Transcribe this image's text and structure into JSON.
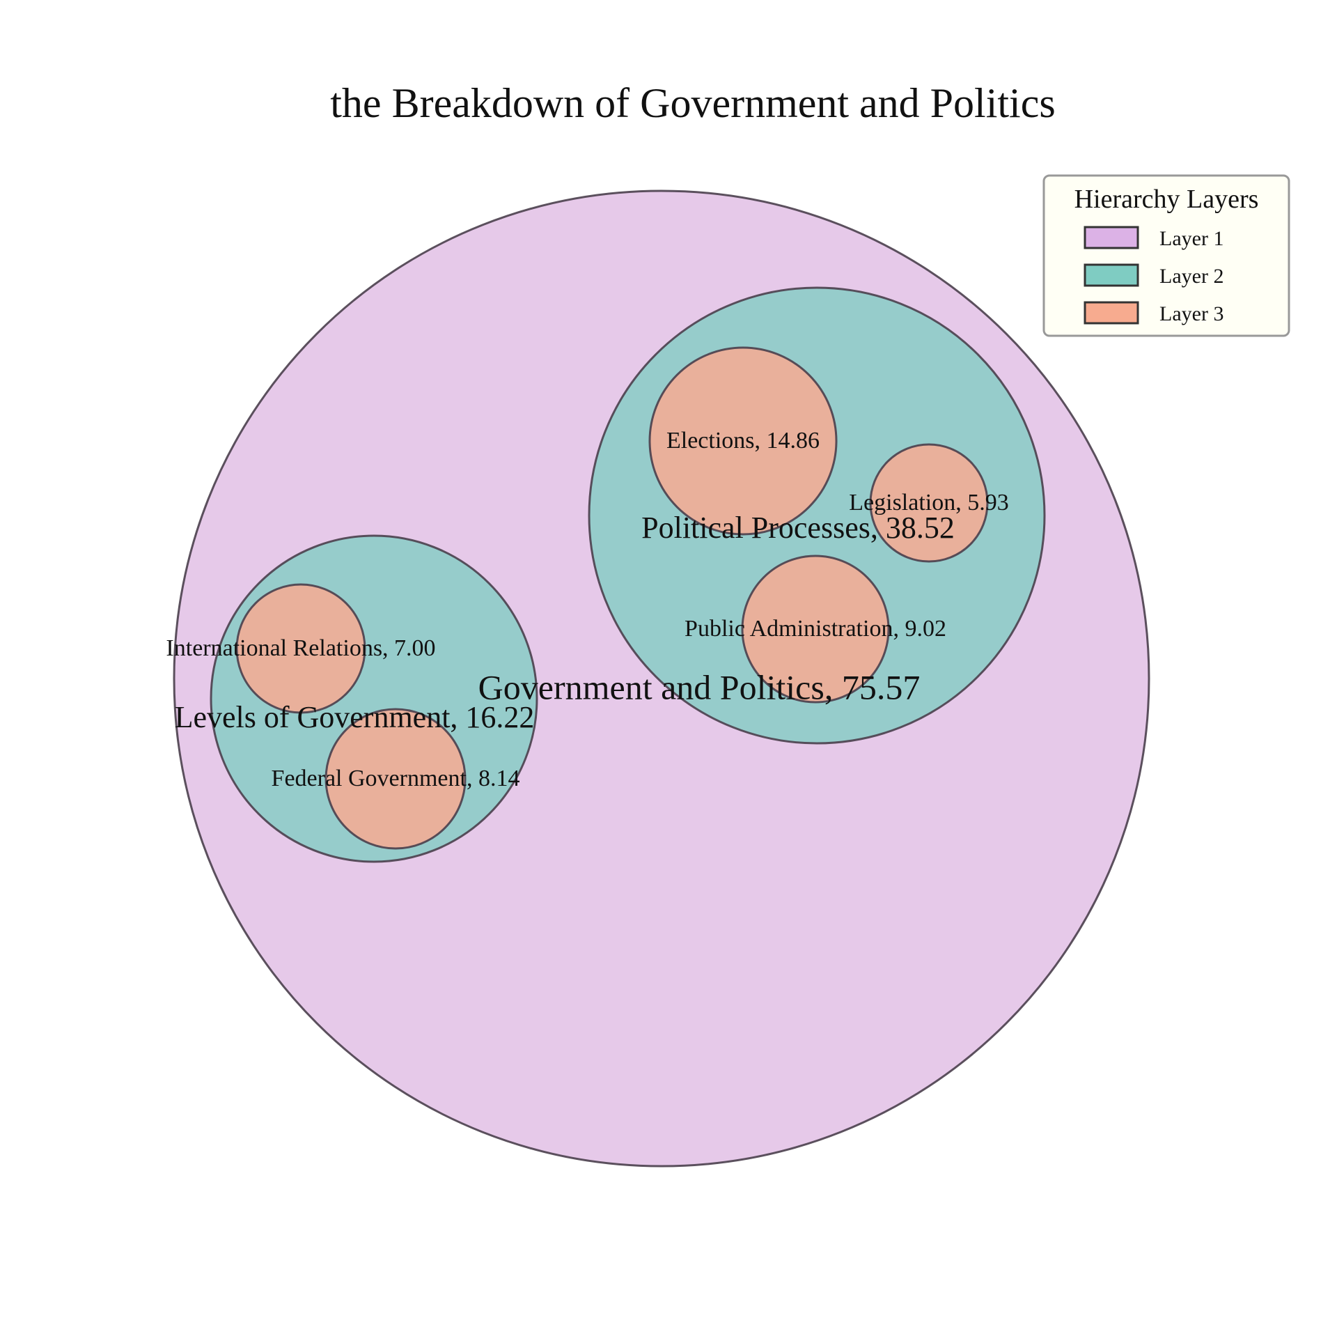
{
  "chart_data": {
    "type": "circle_packing",
    "title": "the Breakdown of Government and Politics",
    "label_separator": ", ",
    "layers": [
      {
        "name": "Layer 1",
        "color": "#e6c9e9"
      },
      {
        "name": "Layer 2",
        "color": "#96cccb"
      },
      {
        "name": "Layer 3",
        "color": "#e9b09b"
      }
    ],
    "legend": {
      "title": "Hierarchy Layers",
      "entries": [
        "Layer 1",
        "Layer 2",
        "Layer 3"
      ],
      "swatch_colors": [
        "#dcb2e6",
        "#7fccc2",
        "#f7ab8f"
      ]
    },
    "root": {
      "name": "Government and Politics",
      "value": 75.57,
      "layer": 1,
      "children": [
        {
          "name": "Levels of Government",
          "value": 16.22,
          "layer": 2,
          "children": [
            {
              "name": "International Relations",
              "value": 7.0,
              "layer": 3
            },
            {
              "name": "Federal Government",
              "value": 8.14,
              "layer": 3
            }
          ]
        },
        {
          "name": "Political Processes",
          "value": 38.52,
          "layer": 2,
          "children": [
            {
              "name": "Elections",
              "value": 14.86,
              "layer": 3
            },
            {
              "name": "Legislation",
              "value": 5.93,
              "layer": 3
            },
            {
              "name": "Public Administration",
              "value": 9.02,
              "layer": 3
            }
          ]
        }
      ]
    }
  }
}
